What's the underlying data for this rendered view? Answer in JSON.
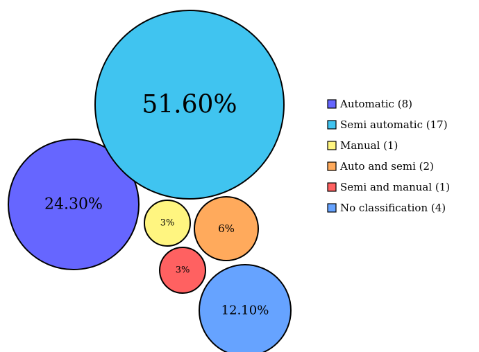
{
  "chart_data": {
    "type": "bubble",
    "title": "",
    "legend_position": "right",
    "series": [
      {
        "name": "Automatic (8)",
        "count": 8,
        "percent_label": "24.30%",
        "color": "#6666ff"
      },
      {
        "name": "Semi automatic (17)",
        "count": 17,
        "percent_label": "51.60%",
        "color": "#40c4f0"
      },
      {
        "name": "Manual (1)",
        "count": 1,
        "percent_label": "3%",
        "color": "#fff580"
      },
      {
        "name": "Auto and semi (2)",
        "count": 2,
        "percent_label": "6%",
        "color": "#ffaa5c"
      },
      {
        "name": "Semi and manual (1)",
        "count": 1,
        "percent_label": "3%",
        "color": "#ff6161"
      },
      {
        "name": "No classification (4)",
        "count": 4,
        "percent_label": "12.10%",
        "color": "#66a3ff"
      }
    ]
  }
}
